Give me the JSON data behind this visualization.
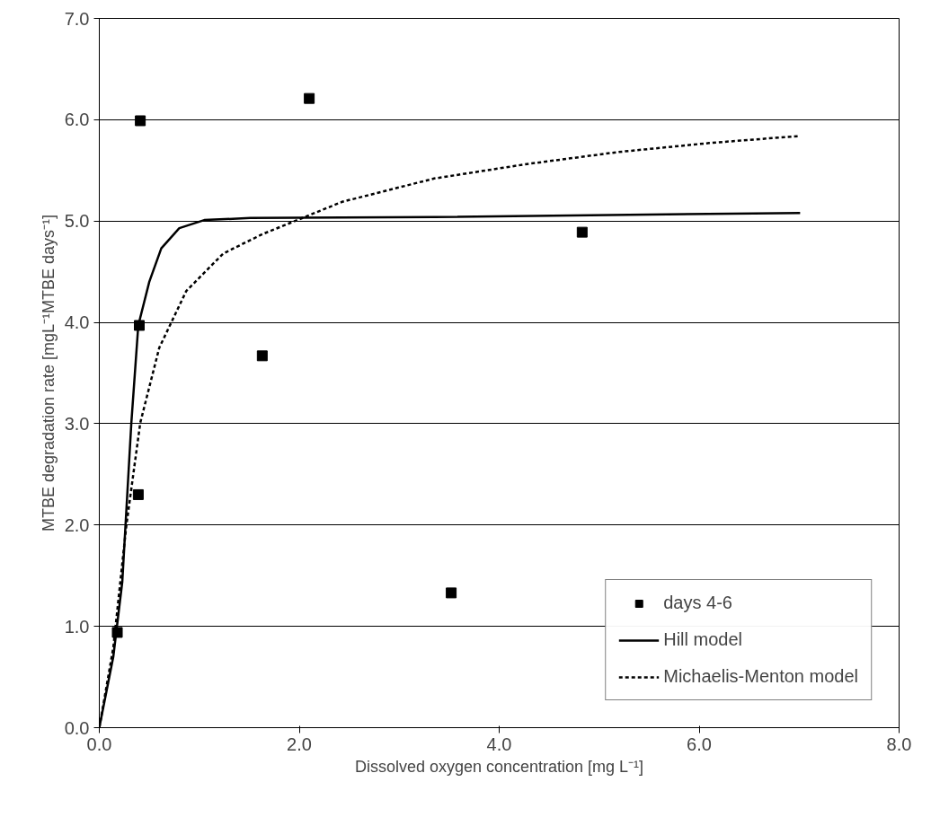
{
  "chart_data": {
    "type": "scatter",
    "xlabel": "Dissolved oxygen concentration [mg L⁻¹]",
    "ylabel": "MTBE degradation rate [mgL⁻¹MTBE days⁻¹]",
    "xlim": [
      0,
      8
    ],
    "ylim": [
      0,
      7
    ],
    "xticks": [
      {
        "value": 0,
        "label": "0.0"
      },
      {
        "value": 2,
        "label": "2.0"
      },
      {
        "value": 4,
        "label": "4.0"
      },
      {
        "value": 6,
        "label": "6.0"
      },
      {
        "value": 8,
        "label": "8.0"
      }
    ],
    "yticks": [
      {
        "value": 0,
        "label": "0.0"
      },
      {
        "value": 1,
        "label": "1.0"
      },
      {
        "value": 2,
        "label": "2.0"
      },
      {
        "value": 3,
        "label": "3.0"
      },
      {
        "value": 4,
        "label": "4.0"
      },
      {
        "value": 5,
        "label": "5.0"
      },
      {
        "value": 6,
        "label": "6.0"
      },
      {
        "value": 7,
        "label": "7.0"
      }
    ],
    "grid": "y",
    "legend": "bottom right",
    "series": [
      {
        "name": "days 4-6",
        "marker": "square",
        "color": "#000000",
        "x": [
          0.41,
          2.1,
          0.4,
          1.63,
          4.83,
          0.39,
          0.18,
          3.52
        ],
        "values": [
          5.99,
          6.21,
          3.97,
          3.67,
          4.89,
          2.3,
          0.94,
          1.33
        ]
      },
      {
        "name": "Hill model",
        "type": "line",
        "line_style": "solid",
        "color": "#000000",
        "x": [
          0,
          0.14,
          0.23,
          0.32,
          0.39,
          0.5,
          0.62,
          0.8,
          1.05,
          1.51,
          3.35,
          7.01
        ],
        "values": [
          0,
          0.7,
          1.44,
          3.0,
          3.97,
          4.4,
          4.73,
          4.93,
          5.01,
          5.03,
          5.04,
          5.08
        ]
      },
      {
        "name": "Michaelis-Menton model",
        "type": "line",
        "line_style": "dashed",
        "color": "#000000",
        "x": [
          0,
          0.14,
          0.27,
          0.41,
          0.6,
          0.87,
          1.24,
          1.63,
          2.43,
          3.35,
          4.26,
          5.18,
          6.1,
          7.01
        ],
        "values": [
          0,
          0.79,
          1.99,
          3.01,
          3.75,
          4.31,
          4.68,
          4.87,
          5.19,
          5.42,
          5.56,
          5.68,
          5.77,
          5.84
        ]
      }
    ]
  }
}
